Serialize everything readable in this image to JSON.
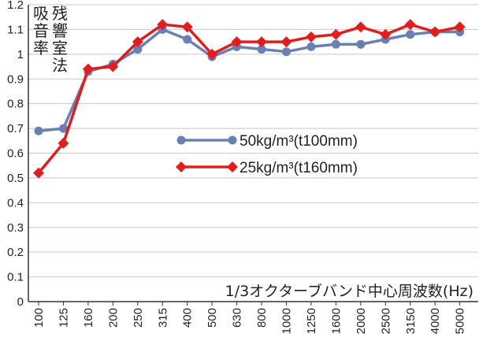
{
  "chart_data": {
    "type": "line",
    "ylabel": [
      "吸",
      "音",
      "率"
    ],
    "method_label": [
      "残",
      "響",
      "室",
      "法"
    ],
    "xlabel": "1/3オクターブバンド中心周波数(Hz)",
    "ylim": [
      0,
      1.2
    ],
    "yticks": [
      "0",
      "0.1",
      "0.2",
      "0.3",
      "0.4",
      "0.5",
      "0.6",
      "0.7",
      "0.8",
      "0.9",
      "1",
      "1.1",
      "1.2"
    ],
    "grid": "horizontal",
    "legend_position": "center-right",
    "categories": [
      "100",
      "125",
      "160",
      "200",
      "250",
      "315",
      "400",
      "500",
      "630",
      "800",
      "1000",
      "1250",
      "1600",
      "2000",
      "2500",
      "3150",
      "4000",
      "5000"
    ],
    "series": [
      {
        "name": "50kg/m³(t100mm)",
        "color": "#6a7fb3",
        "marker": "circle",
        "values": [
          0.69,
          0.7,
          0.93,
          0.96,
          1.02,
          1.1,
          1.06,
          0.99,
          1.03,
          1.02,
          1.01,
          1.03,
          1.04,
          1.04,
          1.06,
          1.08,
          1.09,
          1.09
        ]
      },
      {
        "name": "25kg/m³(t160mm)",
        "color": "#e01e1e",
        "marker": "diamond",
        "values": [
          0.52,
          0.64,
          0.94,
          0.95,
          1.05,
          1.12,
          1.11,
          1.0,
          1.05,
          1.05,
          1.05,
          1.07,
          1.08,
          1.11,
          1.08,
          1.12,
          1.09,
          1.11
        ]
      }
    ]
  }
}
